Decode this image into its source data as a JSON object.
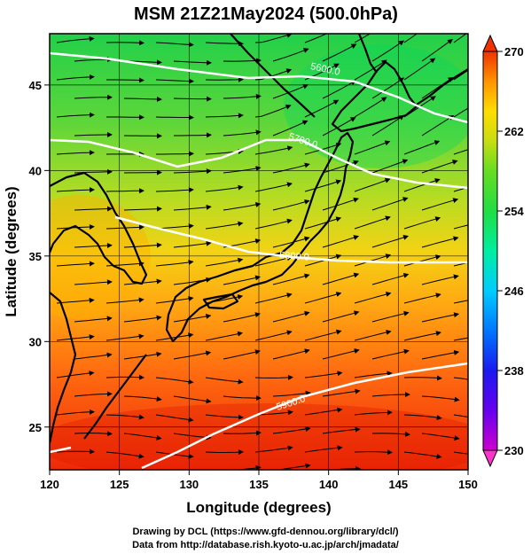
{
  "title": "MSM 21Z21May2024 (500.0hPa)",
  "axes": {
    "xlabel": "Longitude (degrees)",
    "ylabel": "Latitude  (degrees)",
    "xlim": [
      120,
      150
    ],
    "ylim": [
      22.5,
      48
    ],
    "xticks": [
      "120",
      "125",
      "130",
      "135",
      "140",
      "145",
      "150"
    ],
    "yticks": [
      "25",
      "30",
      "35",
      "40",
      "45"
    ],
    "grid": true
  },
  "colorbar": {
    "ticks": [
      "270",
      "262",
      "254",
      "246",
      "238",
      "230"
    ],
    "min": 230,
    "max": 270,
    "colors": [
      "#ff33cc",
      "#cc00cc",
      "#3300ff",
      "#0077ff",
      "#00ccff",
      "#00eea0",
      "#22dd44",
      "#55dd22",
      "#aadd11",
      "#ffdd00",
      "#ffaa00",
      "#ff6600",
      "#ee2200"
    ]
  },
  "contours": [
    {
      "label": "5600.0"
    },
    {
      "label": "5700.0"
    },
    {
      "label": "5800.0"
    },
    {
      "label": "5900.0"
    }
  ],
  "credits": {
    "line1": "Drawing by DCL (https://www.gfd-dennou.org/library/dcl/)",
    "line2": "Data from http://database.rish.kyoto-u.ac.jp/arch/jmadata/"
  }
}
